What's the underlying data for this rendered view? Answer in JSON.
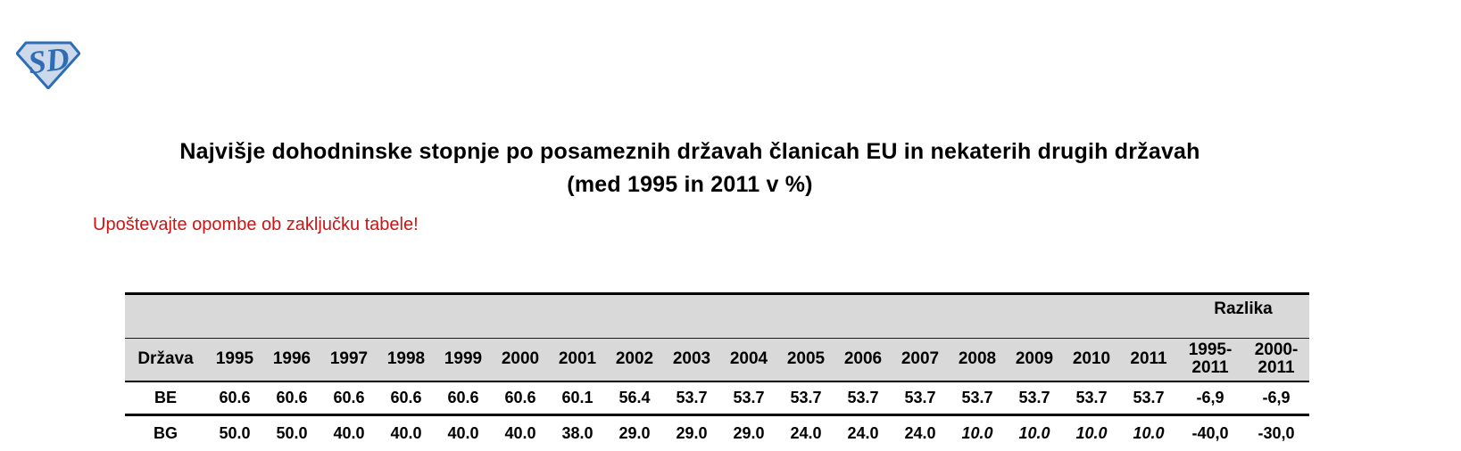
{
  "logo": {
    "letters": "SD"
  },
  "title": {
    "line1": "Najvišje dohodninske stopnje po posameznih državah članicah EU in nekaterih drugih državah",
    "line2": "(med 1995 in 2011 v %)"
  },
  "note": "Upoštevajte opombe ob zaključku tabele!",
  "table": {
    "group_header": "Razlika",
    "country_header": "Država",
    "year_headers": [
      "1995",
      "1996",
      "1997",
      "1998",
      "1999",
      "2000",
      "2001",
      "2002",
      "2003",
      "2004",
      "2005",
      "2006",
      "2007",
      "2008",
      "2009",
      "2010",
      "2011"
    ],
    "razlika_headers": [
      [
        "1995-",
        "2011"
      ],
      [
        "2000-",
        "2011"
      ]
    ],
    "rows": [
      {
        "country": "BE",
        "cells": [
          {
            "v": "60.6"
          },
          {
            "v": "60.6"
          },
          {
            "v": "60.6"
          },
          {
            "v": "60.6"
          },
          {
            "v": "60.6"
          },
          {
            "v": "60.6"
          },
          {
            "v": "60.1"
          },
          {
            "v": "56.4"
          },
          {
            "v": "53.7"
          },
          {
            "v": "53.7"
          },
          {
            "v": "53.7"
          },
          {
            "v": "53.7"
          },
          {
            "v": "53.7"
          },
          {
            "v": "53.7"
          },
          {
            "v": "53.7"
          },
          {
            "v": "53.7"
          },
          {
            "v": "53.7",
            "blue": true
          }
        ],
        "razlika": [
          {
            "v": "-6,9",
            "blue": true
          },
          {
            "v": "-6,9",
            "blue": true
          }
        ]
      },
      {
        "country": "BG",
        "cells": [
          {
            "v": "50.0"
          },
          {
            "v": "50.0"
          },
          {
            "v": "40.0"
          },
          {
            "v": "40.0"
          },
          {
            "v": "40.0"
          },
          {
            "v": "40.0"
          },
          {
            "v": "38.0"
          },
          {
            "v": "29.0"
          },
          {
            "v": "29.0"
          },
          {
            "v": "29.0"
          },
          {
            "v": "24.0"
          },
          {
            "v": "24.0"
          },
          {
            "v": "24.0"
          },
          {
            "v": "10.0",
            "italic": true
          },
          {
            "v": "10.0",
            "italic": true
          },
          {
            "v": "10.0",
            "italic": true
          },
          {
            "v": "10.0",
            "blue": true,
            "italic": true
          }
        ],
        "razlika": [
          {
            "v": "-40,0",
            "blue": true
          },
          {
            "v": "-30,0",
            "blue": true
          }
        ]
      }
    ]
  },
  "colors": {
    "value_blue": "#2020b0",
    "note_red": "#cc1414",
    "header_gray": "#d9d9d9",
    "logo_blue": "#2e6db4",
    "logo_fill": "#ccd9eb"
  }
}
